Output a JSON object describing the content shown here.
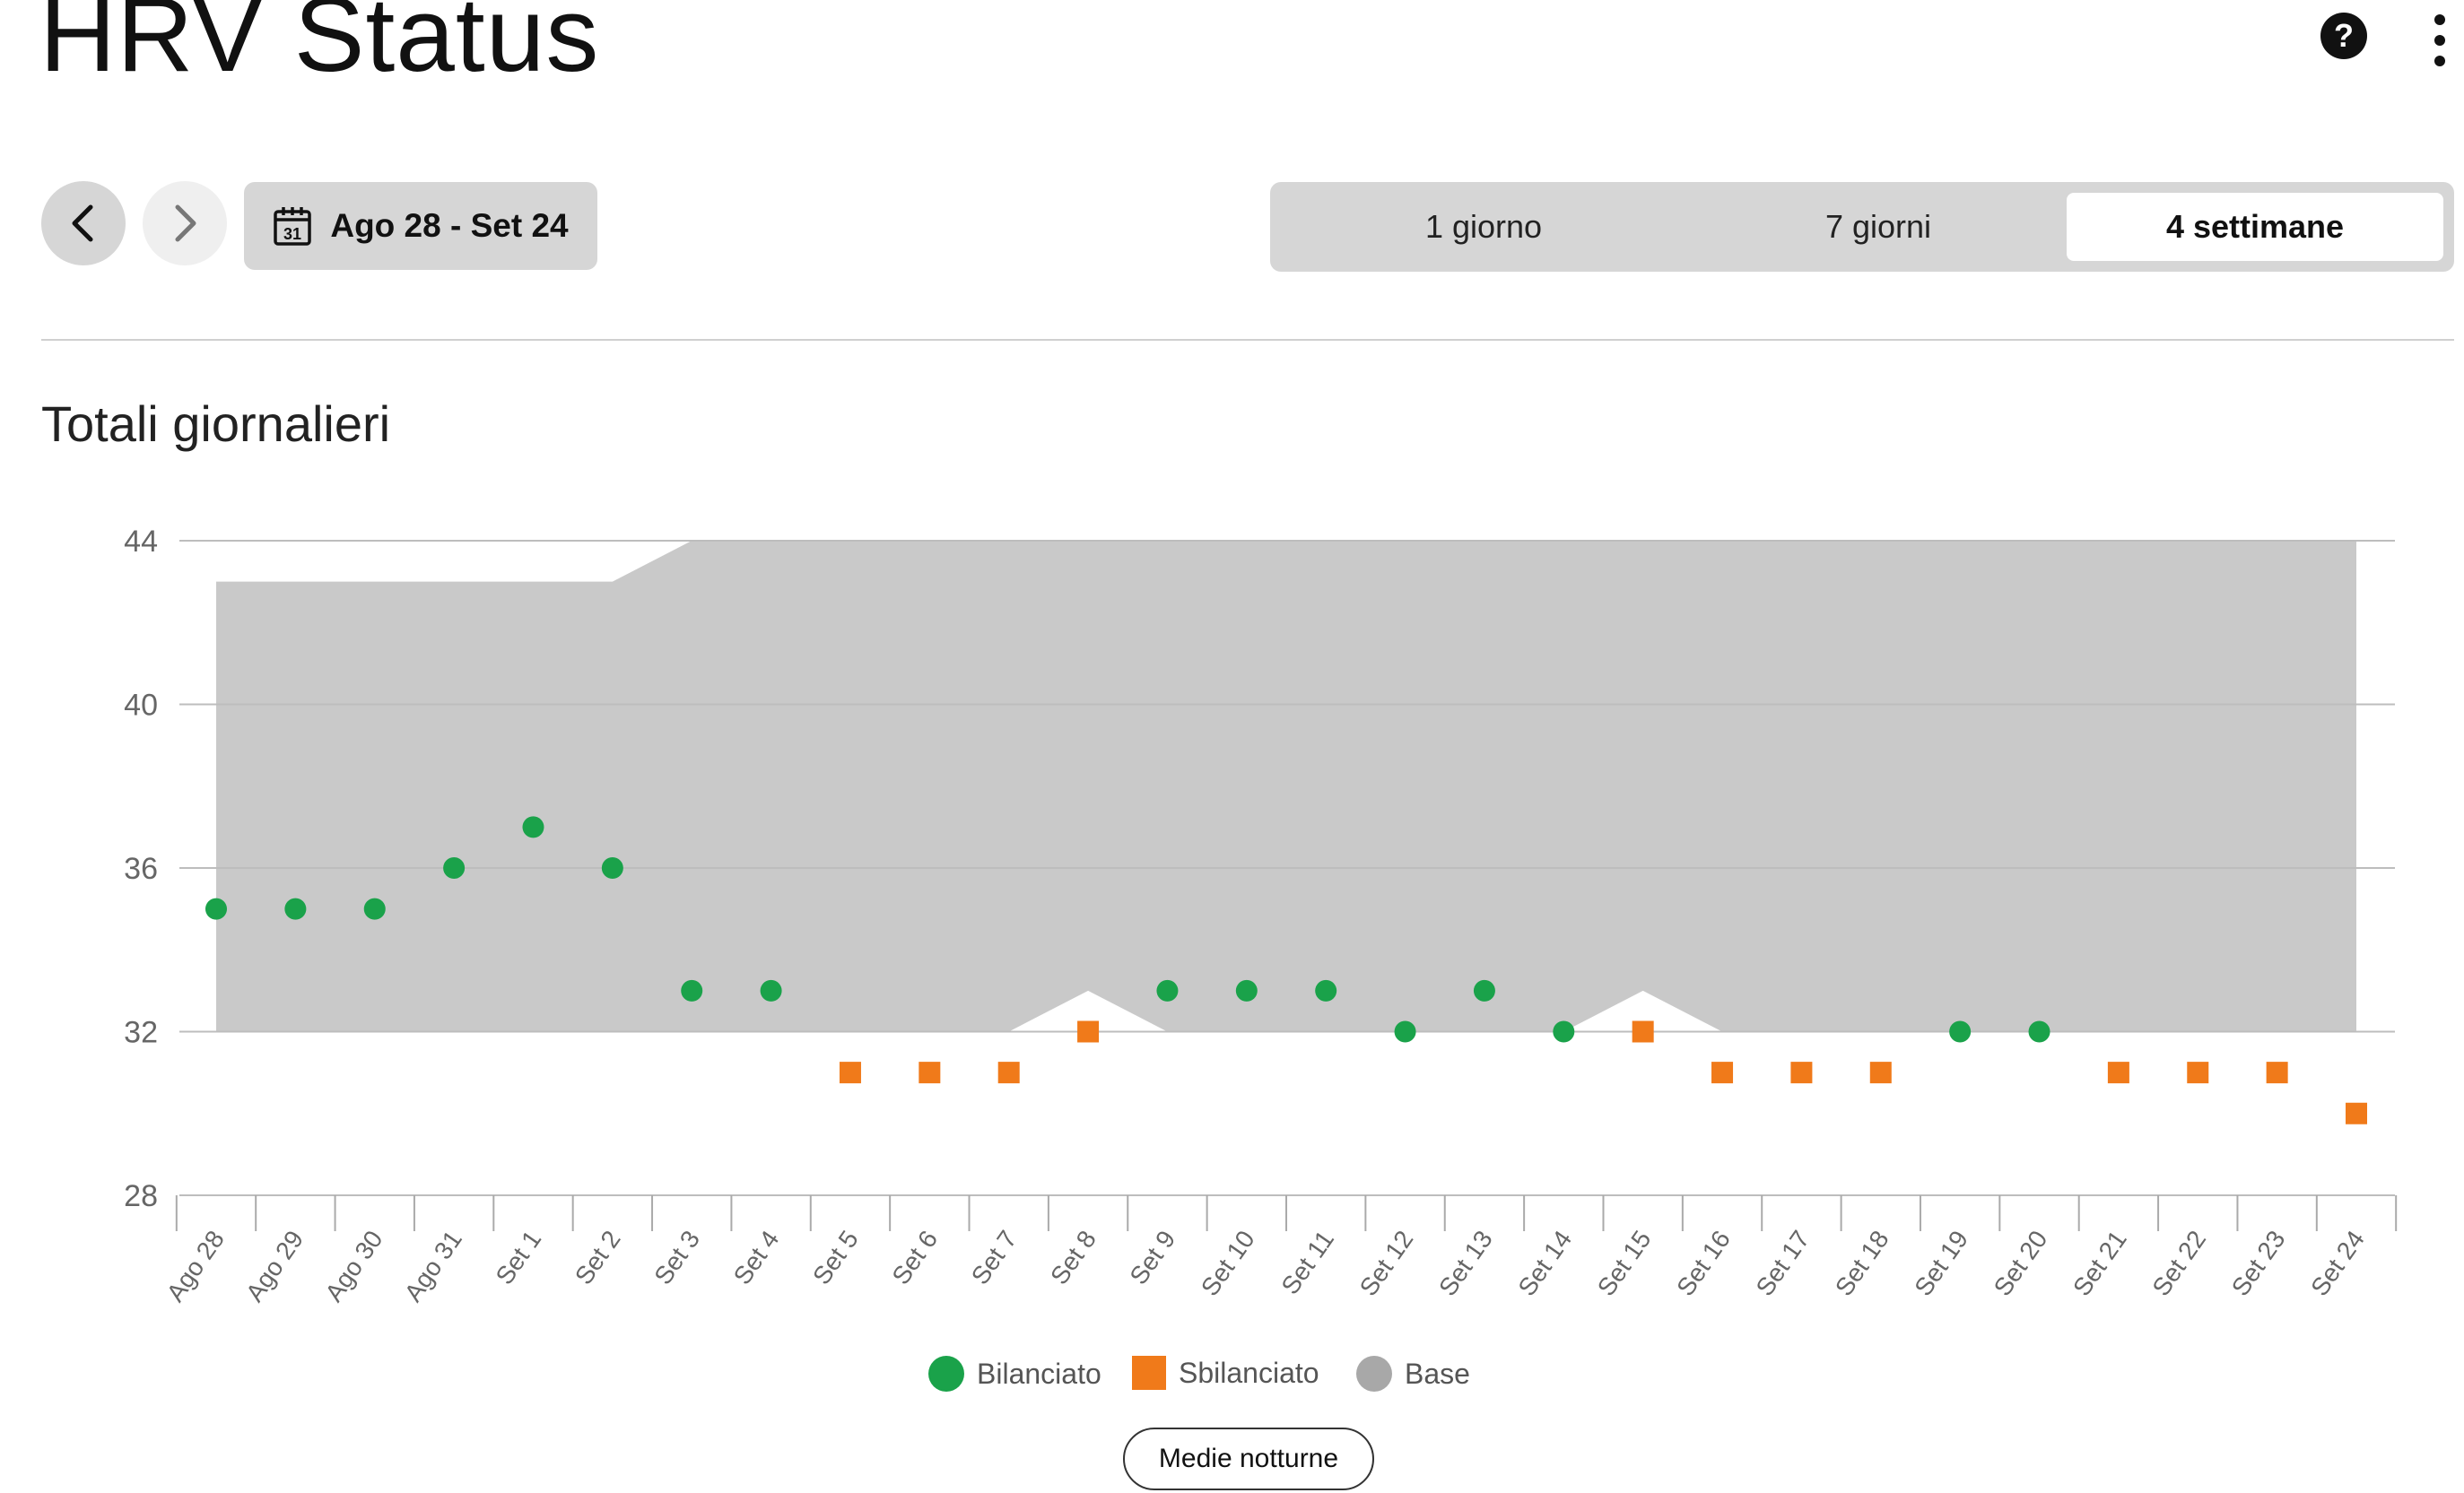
{
  "header": {
    "title": "HRV Status",
    "help_icon": "question-circle-icon",
    "more_icon": "vertical-ellipsis-icon"
  },
  "toolbar": {
    "prev_icon": "chevron-left-icon",
    "next_icon": "chevron-right-icon",
    "calendar_icon": "calendar-icon",
    "calendar_day": "31",
    "date_range": "Ago 28 - Set 24",
    "segments": [
      {
        "label": "1 giorno",
        "selected": false
      },
      {
        "label": "7 giorni",
        "selected": false
      },
      {
        "label": "4 settimane",
        "selected": true
      }
    ]
  },
  "section": {
    "title": "Totali giornalieri"
  },
  "colors": {
    "balanced": "#1aa24a",
    "unbalanced": "#f07a1a",
    "baseline": "#c9c9c9",
    "baseline_legend": "#a8a8a8",
    "grid": "#bdbdbd",
    "axis_text": "#666666"
  },
  "chart_data": {
    "type": "scatter",
    "ylim": [
      28,
      44
    ],
    "yticks": [
      28,
      32,
      36,
      40,
      44
    ],
    "categories": [
      "Ago 28",
      "Ago 29",
      "Ago 30",
      "Ago 31",
      "Set 1",
      "Set 2",
      "Set 3",
      "Set 4",
      "Set 5",
      "Set 6",
      "Set 7",
      "Set 8",
      "Set 9",
      "Set 10",
      "Set 11",
      "Set 12",
      "Set 13",
      "Set 14",
      "Set 15",
      "Set 16",
      "Set 17",
      "Set 18",
      "Set 19",
      "Set 20",
      "Set 21",
      "Set 22",
      "Set 23",
      "Set 24"
    ],
    "values": [
      35,
      35,
      35,
      36,
      37,
      36,
      33,
      33,
      31,
      31,
      31,
      32,
      33,
      33,
      33,
      32,
      33,
      32,
      32,
      31,
      31,
      31,
      32,
      32,
      31,
      31,
      31,
      30
    ],
    "status": [
      "Bilanciato",
      "Bilanciato",
      "Bilanciato",
      "Bilanciato",
      "Bilanciato",
      "Bilanciato",
      "Bilanciato",
      "Bilanciato",
      "Sbilanciato",
      "Sbilanciato",
      "Sbilanciato",
      "Sbilanciato",
      "Bilanciato",
      "Bilanciato",
      "Bilanciato",
      "Bilanciato",
      "Bilanciato",
      "Bilanciato",
      "Sbilanciato",
      "Sbilanciato",
      "Sbilanciato",
      "Sbilanciato",
      "Bilanciato",
      "Bilanciato",
      "Sbilanciato",
      "Sbilanciato",
      "Sbilanciato",
      "Sbilanciato"
    ],
    "baseline_band": {
      "upper": [
        43,
        43,
        43,
        43,
        43,
        43,
        44,
        44,
        44,
        44,
        44,
        44,
        44,
        44,
        44,
        44,
        44,
        44,
        44,
        44,
        44,
        44,
        44,
        44,
        44,
        44,
        44,
        44
      ],
      "lower": [
        32,
        32,
        32,
        32,
        32,
        32,
        32,
        32,
        32,
        32,
        32,
        33,
        32,
        32,
        32,
        32,
        32,
        32,
        33,
        32,
        32,
        32,
        32,
        32,
        32,
        32,
        32,
        32
      ]
    },
    "legend": [
      "Bilanciato",
      "Sbilanciato",
      "Base"
    ]
  },
  "footer": {
    "button_label": "Medie notturne"
  }
}
